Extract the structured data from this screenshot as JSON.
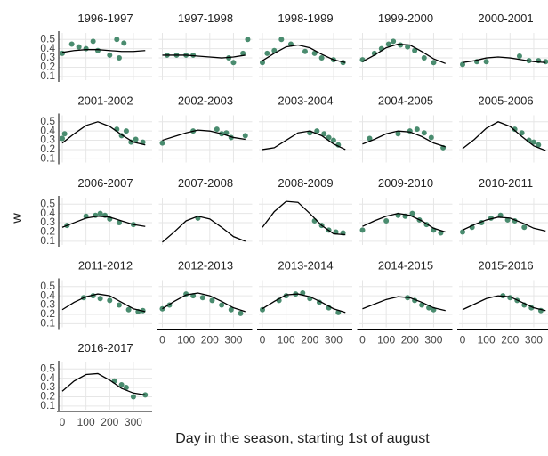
{
  "chart_data": {
    "type": "scatter",
    "x_label": "Day in the season, starting 1st of august",
    "y_label": "w",
    "xlim": [
      -15,
      379
    ],
    "ylim": [
      0.06,
      0.57
    ],
    "xticks": [
      0,
      100,
      200,
      300
    ],
    "yticks": [
      0.1,
      0.2,
      0.3,
      0.4,
      0.5
    ],
    "grid": true,
    "point_color": "#4a8c6f",
    "curve_color": "#000000",
    "curve_x": [
      0,
      50,
      100,
      150,
      200,
      250,
      300,
      350
    ],
    "panels": [
      {
        "title": "1996-1997",
        "curve_y": [
          0.36,
          0.38,
          0.39,
          0.39,
          0.38,
          0.37,
          0.37,
          0.38
        ],
        "points_x": [
          0,
          40,
          70,
          100,
          130,
          150,
          200,
          230,
          240,
          260
        ],
        "points_y": [
          0.35,
          0.45,
          0.42,
          0.4,
          0.48,
          0.38,
          0.33,
          0.5,
          0.3,
          0.46
        ]
      },
      {
        "title": "1997-1998",
        "curve_y": [
          0.33,
          0.33,
          0.33,
          0.32,
          0.31,
          0.3,
          0.31,
          0.33
        ],
        "points_x": [
          20,
          60,
          100,
          130,
          280,
          300,
          340,
          360
        ],
        "points_y": [
          0.33,
          0.33,
          0.33,
          0.33,
          0.3,
          0.25,
          0.35,
          0.5
        ]
      },
      {
        "title": "1998-1999",
        "curve_y": [
          0.27,
          0.35,
          0.42,
          0.44,
          0.41,
          0.34,
          0.28,
          0.25
        ],
        "points_x": [
          0,
          20,
          50,
          80,
          120,
          180,
          220,
          250,
          300,
          340
        ],
        "points_y": [
          0.25,
          0.35,
          0.38,
          0.5,
          0.45,
          0.37,
          0.35,
          0.3,
          0.28,
          0.25
        ]
      },
      {
        "title": "1999-2000",
        "curve_y": [
          0.26,
          0.33,
          0.41,
          0.45,
          0.44,
          0.37,
          0.29,
          0.24
        ],
        "points_x": [
          0,
          50,
          80,
          110,
          130,
          160,
          190,
          220,
          260,
          300
        ],
        "points_y": [
          0.28,
          0.35,
          0.4,
          0.45,
          0.48,
          0.44,
          0.42,
          0.38,
          0.3,
          0.25
        ]
      },
      {
        "title": "2000-2001",
        "curve_y": [
          0.25,
          0.27,
          0.3,
          0.31,
          0.3,
          0.28,
          0.26,
          0.25
        ],
        "points_x": [
          0,
          60,
          100,
          240,
          280,
          320,
          350
        ],
        "points_y": [
          0.23,
          0.26,
          0.26,
          0.32,
          0.27,
          0.27,
          0.26
        ]
      },
      {
        "title": "2001-2002",
        "curve_y": [
          0.27,
          0.37,
          0.46,
          0.5,
          0.45,
          0.36,
          0.28,
          0.25
        ],
        "points_x": [
          0,
          10,
          230,
          250,
          270,
          290,
          310,
          340
        ],
        "points_y": [
          0.32,
          0.37,
          0.42,
          0.35,
          0.4,
          0.28,
          0.31,
          0.28
        ]
      },
      {
        "title": "2002-2003",
        "curve_y": [
          0.3,
          0.34,
          0.38,
          0.41,
          0.4,
          0.37,
          0.33,
          0.31
        ],
        "points_x": [
          0,
          130,
          230,
          250,
          270,
          290,
          350
        ],
        "points_y": [
          0.27,
          0.4,
          0.42,
          0.37,
          0.38,
          0.33,
          0.35
        ]
      },
      {
        "title": "2003-2004",
        "curve_y": [
          0.2,
          0.22,
          0.3,
          0.38,
          0.4,
          0.35,
          0.26,
          0.2
        ],
        "points_x": [
          200,
          230,
          260,
          280,
          300,
          320
        ],
        "points_y": [
          0.38,
          0.4,
          0.37,
          0.33,
          0.3,
          0.25
        ]
      },
      {
        "title": "2004-2005",
        "curve_y": [
          0.26,
          0.31,
          0.37,
          0.4,
          0.39,
          0.34,
          0.27,
          0.23
        ],
        "points_x": [
          30,
          150,
          200,
          230,
          260,
          290,
          340
        ],
        "points_y": [
          0.32,
          0.37,
          0.4,
          0.42,
          0.38,
          0.33,
          0.22
        ]
      },
      {
        "title": "2005-2006",
        "curve_y": [
          0.21,
          0.31,
          0.43,
          0.5,
          0.45,
          0.34,
          0.24,
          0.19
        ],
        "points_x": [
          220,
          250,
          280,
          300,
          320
        ],
        "points_y": [
          0.42,
          0.38,
          0.3,
          0.28,
          0.25
        ]
      },
      {
        "title": "2006-2007",
        "curve_y": [
          0.25,
          0.3,
          0.35,
          0.37,
          0.36,
          0.32,
          0.28,
          0.26
        ],
        "points_x": [
          20,
          100,
          140,
          160,
          180,
          200,
          240,
          300
        ],
        "points_y": [
          0.27,
          0.37,
          0.38,
          0.4,
          0.38,
          0.34,
          0.3,
          0.28
        ]
      },
      {
        "title": "2007-2008",
        "curve_y": [
          0.09,
          0.2,
          0.32,
          0.37,
          0.34,
          0.25,
          0.15,
          0.1
        ],
        "points_x": [
          150
        ],
        "points_y": [
          0.35
        ]
      },
      {
        "title": "2008-2009",
        "curve_y": [
          0.25,
          0.42,
          0.53,
          0.52,
          0.4,
          0.27,
          0.18,
          0.17
        ],
        "points_x": [
          220,
          250,
          280,
          310,
          340
        ],
        "points_y": [
          0.32,
          0.27,
          0.22,
          0.2,
          0.19
        ]
      },
      {
        "title": "2009-2010",
        "curve_y": [
          0.26,
          0.32,
          0.37,
          0.4,
          0.38,
          0.32,
          0.24,
          0.2
        ],
        "points_x": [
          0,
          100,
          150,
          180,
          210,
          240,
          270,
          300,
          330
        ],
        "points_y": [
          0.22,
          0.32,
          0.38,
          0.37,
          0.4,
          0.33,
          0.28,
          0.22,
          0.19
        ]
      },
      {
        "title": "2010-2011",
        "curve_y": [
          0.22,
          0.28,
          0.33,
          0.36,
          0.35,
          0.3,
          0.24,
          0.21
        ],
        "points_x": [
          0,
          40,
          80,
          120,
          160,
          190,
          220,
          260
        ],
        "points_y": [
          0.2,
          0.25,
          0.3,
          0.35,
          0.38,
          0.33,
          0.32,
          0.25
        ]
      },
      {
        "title": "2011-2012",
        "curve_y": [
          0.25,
          0.33,
          0.39,
          0.42,
          0.4,
          0.33,
          0.26,
          0.23
        ],
        "points_x": [
          90,
          130,
          160,
          200,
          240,
          280,
          320,
          340
        ],
        "points_y": [
          0.38,
          0.4,
          0.37,
          0.35,
          0.3,
          0.25,
          0.23,
          0.24
        ]
      },
      {
        "title": "2012-2013",
        "curve_y": [
          0.26,
          0.34,
          0.41,
          0.43,
          0.4,
          0.34,
          0.27,
          0.23
        ],
        "points_x": [
          0,
          30,
          100,
          130,
          170,
          210,
          250,
          290,
          330
        ],
        "points_y": [
          0.26,
          0.3,
          0.42,
          0.4,
          0.38,
          0.35,
          0.3,
          0.25,
          0.21
        ]
      },
      {
        "title": "2013-2014",
        "curve_y": [
          0.26,
          0.34,
          0.41,
          0.42,
          0.39,
          0.33,
          0.26,
          0.22
        ],
        "points_x": [
          0,
          70,
          100,
          140,
          170,
          200,
          240,
          280,
          320
        ],
        "points_y": [
          0.25,
          0.35,
          0.4,
          0.42,
          0.43,
          0.37,
          0.33,
          0.27,
          0.22
        ]
      },
      {
        "title": "2014-2015",
        "curve_y": [
          0.26,
          0.31,
          0.36,
          0.39,
          0.38,
          0.33,
          0.27,
          0.24
        ],
        "points_x": [
          190,
          220,
          250,
          280,
          300
        ],
        "points_y": [
          0.38,
          0.35,
          0.3,
          0.27,
          0.25
        ]
      },
      {
        "title": "2015-2016",
        "curve_y": [
          0.25,
          0.31,
          0.37,
          0.4,
          0.39,
          0.33,
          0.27,
          0.24
        ],
        "points_x": [
          170,
          200,
          230,
          260,
          290,
          330
        ],
        "points_y": [
          0.4,
          0.38,
          0.35,
          0.3,
          0.27,
          0.24
        ]
      },
      {
        "title": "2016-2017",
        "curve_y": [
          0.26,
          0.37,
          0.44,
          0.45,
          0.38,
          0.29,
          0.24,
          0.22
        ],
        "points_x": [
          220,
          250,
          270,
          300,
          350
        ],
        "points_y": [
          0.37,
          0.33,
          0.3,
          0.2,
          0.22
        ]
      }
    ]
  }
}
